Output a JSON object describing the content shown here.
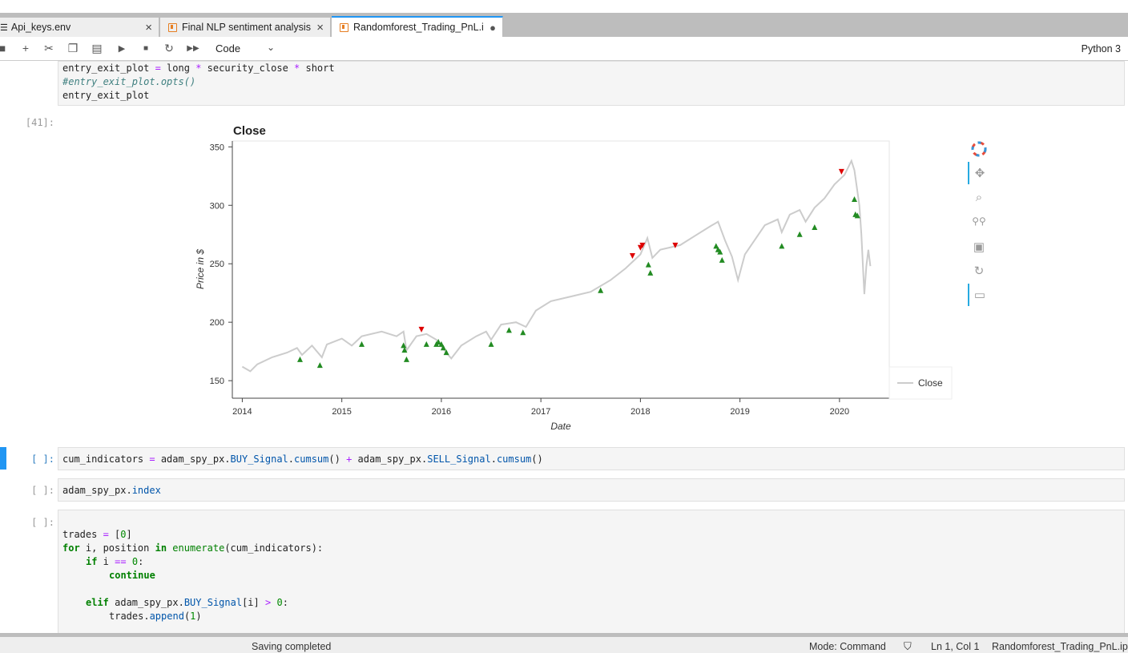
{
  "tabs": [
    {
      "label": "Api_keys.env",
      "close": "×"
    },
    {
      "label": "Final NLP sentiment analysis",
      "close": "×"
    },
    {
      "label": "Randomforest_Trading_PnL.i",
      "close": "●"
    }
  ],
  "toolbar": {
    "cell_type": "Code",
    "kernel": "Python 3"
  },
  "cells": {
    "c1_line1": {
      "a": "entry_exit_plot ",
      "op": "=",
      "b": " long ",
      "op2": "*",
      "c": " security_close ",
      "op3": "*",
      "d": " short"
    },
    "c1_line2": "#entry_exit_plot.opts()",
    "c1_line3": "entry_exit_plot",
    "out_prompt": "[41]:",
    "c2_prompt": "[ ]:",
    "c2": {
      "a": "cum_indicators ",
      "op": "=",
      "b": " adam_spy_px.",
      "c": "BUY_Signal",
      "d": ".",
      "e": "cumsum",
      "f": "() ",
      "op2": "+",
      "g": " adam_spy_px.",
      "h": "SELL_Signal",
      "i": ".",
      "j": "cumsum",
      "k": "()"
    },
    "c3_prompt": "[ ]:",
    "c3": {
      "a": "adam_spy_px.",
      "b": "index"
    },
    "c4_prompt": "[ ]:",
    "c4": {
      "l1a": "trades ",
      "l1op": "=",
      "l1b": " [",
      "l1n": "0",
      "l1c": "]",
      "l2kw": "for",
      "l2a": " i, position ",
      "l2kw2": "in",
      "l2sp": " ",
      "l2bi": "enumerate",
      "l2b": "(cum_indicators):",
      "l3kw": "if",
      "l3a": " i ",
      "l3op": "==",
      "l3sp": " ",
      "l3n": "0",
      "l3b": ":",
      "l4kw": "continue",
      "l6kw": "elif",
      "l6a": " adam_spy_px.",
      "l6at": "BUY_Signal",
      "l6b": "[i] ",
      "l6op": ">",
      "l6sp": " ",
      "l6n": "0",
      "l6c": ":",
      "l7a": "trades.",
      "l7at": "append",
      "l7b": "(",
      "l7n": "1",
      "l7c": ")"
    }
  },
  "chart_data": {
    "type": "line",
    "title": "Close",
    "xlabel": "Date",
    "ylabel": "Price in $",
    "x_ticks": [
      "2014",
      "2015",
      "2016",
      "2017",
      "2018",
      "2019",
      "2020"
    ],
    "y_ticks": [
      "150",
      "200",
      "250",
      "300",
      "350"
    ],
    "xlim": [
      2013.9,
      2020.5
    ],
    "ylim": [
      135,
      355
    ],
    "legend": {
      "label": "Close",
      "placement": "right"
    },
    "series": [
      {
        "name": "Close",
        "color": "#cccccc",
        "points": [
          [
            2014.0,
            162
          ],
          [
            2014.08,
            158
          ],
          [
            2014.15,
            164
          ],
          [
            2014.3,
            170
          ],
          [
            2014.45,
            174
          ],
          [
            2014.55,
            178
          ],
          [
            2014.6,
            172
          ],
          [
            2014.7,
            180
          ],
          [
            2014.8,
            170
          ],
          [
            2014.85,
            181
          ],
          [
            2015.0,
            186
          ],
          [
            2015.1,
            180
          ],
          [
            2015.2,
            188
          ],
          [
            2015.4,
            192
          ],
          [
            2015.55,
            188
          ],
          [
            2015.62,
            192
          ],
          [
            2015.65,
            176
          ],
          [
            2015.75,
            188
          ],
          [
            2015.85,
            190
          ],
          [
            2015.95,
            185
          ],
          [
            2016.05,
            174
          ],
          [
            2016.1,
            169
          ],
          [
            2016.2,
            180
          ],
          [
            2016.35,
            188
          ],
          [
            2016.45,
            192
          ],
          [
            2016.5,
            185
          ],
          [
            2016.6,
            198
          ],
          [
            2016.75,
            200
          ],
          [
            2016.85,
            196
          ],
          [
            2016.95,
            210
          ],
          [
            2017.1,
            218
          ],
          [
            2017.3,
            222
          ],
          [
            2017.5,
            226
          ],
          [
            2017.7,
            236
          ],
          [
            2017.85,
            246
          ],
          [
            2018.0,
            258
          ],
          [
            2018.07,
            272
          ],
          [
            2018.12,
            255
          ],
          [
            2018.2,
            262
          ],
          [
            2018.4,
            266
          ],
          [
            2018.55,
            274
          ],
          [
            2018.7,
            282
          ],
          [
            2018.78,
            286
          ],
          [
            2018.85,
            270
          ],
          [
            2018.92,
            256
          ],
          [
            2018.98,
            236
          ],
          [
            2019.05,
            258
          ],
          [
            2019.25,
            283
          ],
          [
            2019.38,
            288
          ],
          [
            2019.42,
            277
          ],
          [
            2019.5,
            292
          ],
          [
            2019.6,
            296
          ],
          [
            2019.66,
            286
          ],
          [
            2019.75,
            298
          ],
          [
            2019.85,
            306
          ],
          [
            2019.95,
            318
          ],
          [
            2020.05,
            326
          ],
          [
            2020.12,
            338
          ],
          [
            2020.15,
            330
          ],
          [
            2020.2,
            300
          ],
          [
            2020.22,
            275
          ],
          [
            2020.24,
            240
          ],
          [
            2020.25,
            224
          ],
          [
            2020.27,
            248
          ],
          [
            2020.29,
            262
          ],
          [
            2020.31,
            248
          ]
        ]
      },
      {
        "name": "Buy",
        "marker": "triangle-up",
        "color": "#228b22",
        "points": [
          [
            2014.58,
            168
          ],
          [
            2014.78,
            163
          ],
          [
            2015.2,
            181
          ],
          [
            2015.62,
            180
          ],
          [
            2015.63,
            176
          ],
          [
            2015.65,
            168
          ],
          [
            2015.85,
            181
          ],
          [
            2015.95,
            181
          ],
          [
            2015.97,
            183
          ],
          [
            2016.0,
            181
          ],
          [
            2016.02,
            178
          ],
          [
            2016.05,
            174
          ],
          [
            2016.5,
            181
          ],
          [
            2016.68,
            193
          ],
          [
            2016.82,
            191
          ],
          [
            2017.6,
            227
          ],
          [
            2018.08,
            249
          ],
          [
            2018.1,
            242
          ],
          [
            2018.76,
            265
          ],
          [
            2018.78,
            262
          ],
          [
            2018.8,
            260
          ],
          [
            2018.82,
            253
          ],
          [
            2019.42,
            265
          ],
          [
            2019.6,
            275
          ],
          [
            2019.75,
            281
          ],
          [
            2020.15,
            305
          ],
          [
            2020.16,
            292
          ],
          [
            2020.18,
            291
          ]
        ]
      },
      {
        "name": "Sell",
        "marker": "triangle-down",
        "color": "#dd0000",
        "points": [
          [
            2015.8,
            194
          ],
          [
            2017.92,
            257
          ],
          [
            2018.0,
            264
          ],
          [
            2018.02,
            266
          ],
          [
            2018.35,
            266
          ],
          [
            2020.02,
            329
          ]
        ]
      }
    ]
  },
  "status": {
    "saving": "Saving completed",
    "mode": "Mode: Command",
    "position": "Ln 1, Col 1",
    "file": "Randomforest_Trading_PnL.ipy"
  }
}
